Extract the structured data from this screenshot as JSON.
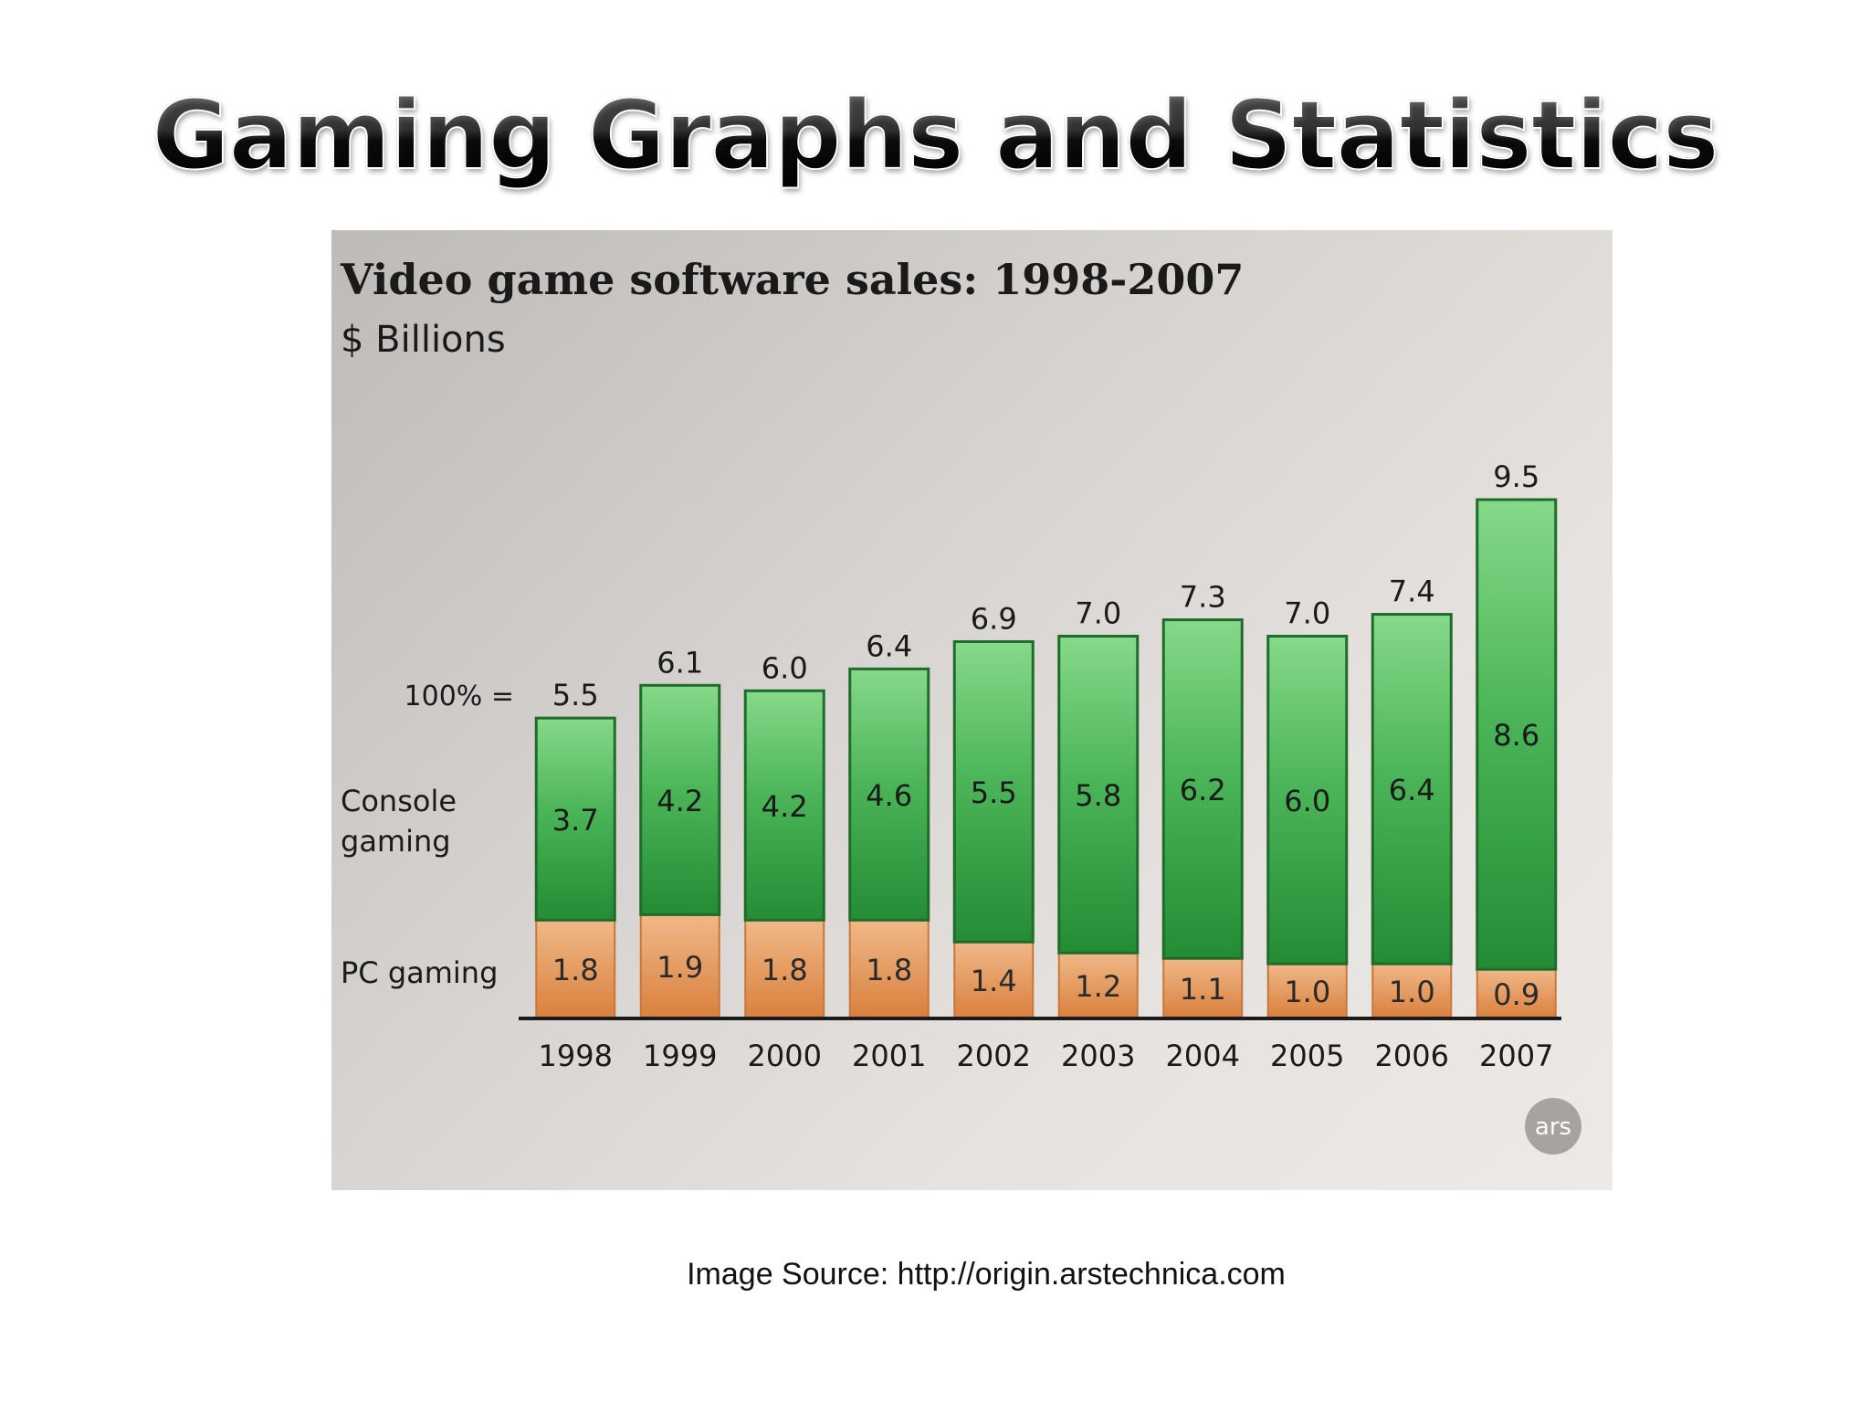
{
  "slide": {
    "title": "Gaming Graphs and Statistics",
    "source_caption": "Image Source: http://origin.arstechnica.com"
  },
  "chart_data": {
    "type": "bar",
    "stacked": true,
    "title": "Video game software sales: 1998-2007",
    "subtitle": "$ Billions",
    "total_label_prefix": "100% =",
    "categories": [
      "1998",
      "1999",
      "2000",
      "2001",
      "2002",
      "2003",
      "2004",
      "2005",
      "2006",
      "2007"
    ],
    "series": [
      {
        "name": "PC gaming",
        "values": [
          1.8,
          1.9,
          1.8,
          1.8,
          1.4,
          1.2,
          1.1,
          1.0,
          1.0,
          0.9
        ],
        "color": "#e39a62"
      },
      {
        "name": "Console gaming",
        "values": [
          3.7,
          4.2,
          4.2,
          4.6,
          5.5,
          5.8,
          6.2,
          6.0,
          6.4,
          8.6
        ],
        "color": "#3aa24a"
      }
    ],
    "series_labels": [
      "Console gaming",
      "PC gaming"
    ],
    "totals": [
      5.5,
      6.1,
      6.0,
      6.4,
      6.9,
      7.0,
      7.3,
      7.0,
      7.4,
      9.5
    ],
    "ylim": [
      0,
      9.5
    ],
    "grid": false,
    "legend": "left",
    "watermark": "ars"
  }
}
